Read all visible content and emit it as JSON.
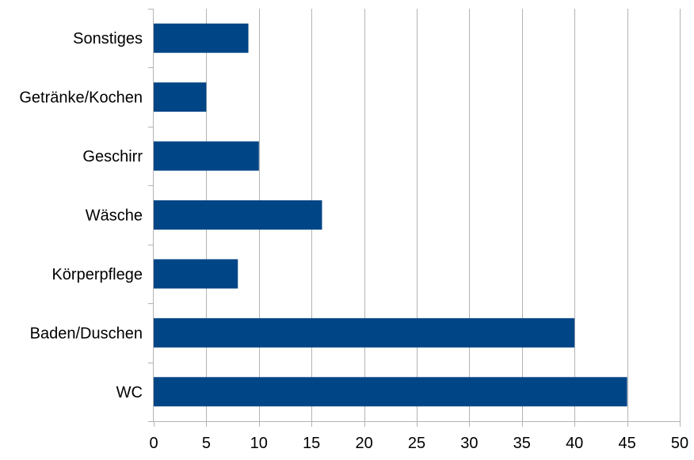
{
  "chart_data": {
    "type": "bar",
    "orientation": "horizontal",
    "categories": [
      "WC",
      "Baden/Duschen",
      "Körperpflege",
      "Wäsche",
      "Geschirr",
      "Getränke/Kochen",
      "Sonstiges"
    ],
    "values": [
      45,
      40,
      8,
      16,
      10,
      5,
      9
    ],
    "xlim": [
      0,
      50
    ],
    "x_ticks": [
      "0",
      "5",
      "10",
      "15",
      "20",
      "25",
      "30",
      "35",
      "40",
      "45",
      "50"
    ],
    "title": "",
    "xlabel": "",
    "ylabel": "",
    "grid": "vertical",
    "legend": "none",
    "bar_color": "#004586",
    "grid_color": "#b3b3b3",
    "axis_color": "#b3b3b3",
    "text_color": "#000000"
  }
}
